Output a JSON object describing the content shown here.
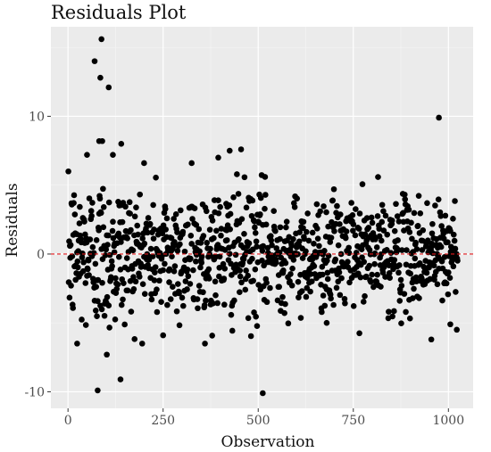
{
  "chart_data": {
    "type": "scatter",
    "title": "Residuals Plot",
    "xlabel": "Observation",
    "ylabel": "Residuals",
    "xlim": [
      -45,
      1065
    ],
    "ylim": [
      -11.2,
      16.5
    ],
    "x_ticks": [
      0,
      250,
      500,
      750,
      1000
    ],
    "x_tick_labels": [
      "0",
      "250",
      "500",
      "750",
      "1000"
    ],
    "y_ticks": [
      -10,
      0,
      10
    ],
    "y_tick_labels": [
      "-10",
      "0",
      "10"
    ],
    "reference_line": {
      "y": 0,
      "style": "dashed",
      "color": "#e41a1c"
    },
    "grid": true,
    "panel_background": "#ebebeb",
    "point_color": "#000000",
    "n_points": 1024,
    "noise_seed": 12345,
    "highlighted_points": [
      {
        "x": 88,
        "y": 15.6
      },
      {
        "x": 70,
        "y": 14.0
      },
      {
        "x": 107,
        "y": 12.1
      },
      {
        "x": 85,
        "y": 12.8
      },
      {
        "x": 82,
        "y": 8.2
      },
      {
        "x": 90,
        "y": 8.2
      },
      {
        "x": 140,
        "y": 8.0
      },
      {
        "x": 118,
        "y": 7.2
      },
      {
        "x": 50,
        "y": 7.2
      },
      {
        "x": 975,
        "y": 9.9
      },
      {
        "x": 425,
        "y": 7.5
      },
      {
        "x": 455,
        "y": 7.6
      },
      {
        "x": 395,
        "y": 7.0
      },
      {
        "x": 325,
        "y": 6.6
      },
      {
        "x": 200,
        "y": 6.6
      },
      {
        "x": 78,
        "y": -9.9
      },
      {
        "x": 512,
        "y": -10.1
      },
      {
        "x": 138,
        "y": -9.1
      },
      {
        "x": 102,
        "y": -7.3
      },
      {
        "x": 955,
        "y": -6.2
      },
      {
        "x": 24,
        "y": -6.5
      },
      {
        "x": 250,
        "y": -5.9
      },
      {
        "x": 680,
        "y": -5.0
      },
      {
        "x": 1005,
        "y": -5.1
      }
    ]
  }
}
